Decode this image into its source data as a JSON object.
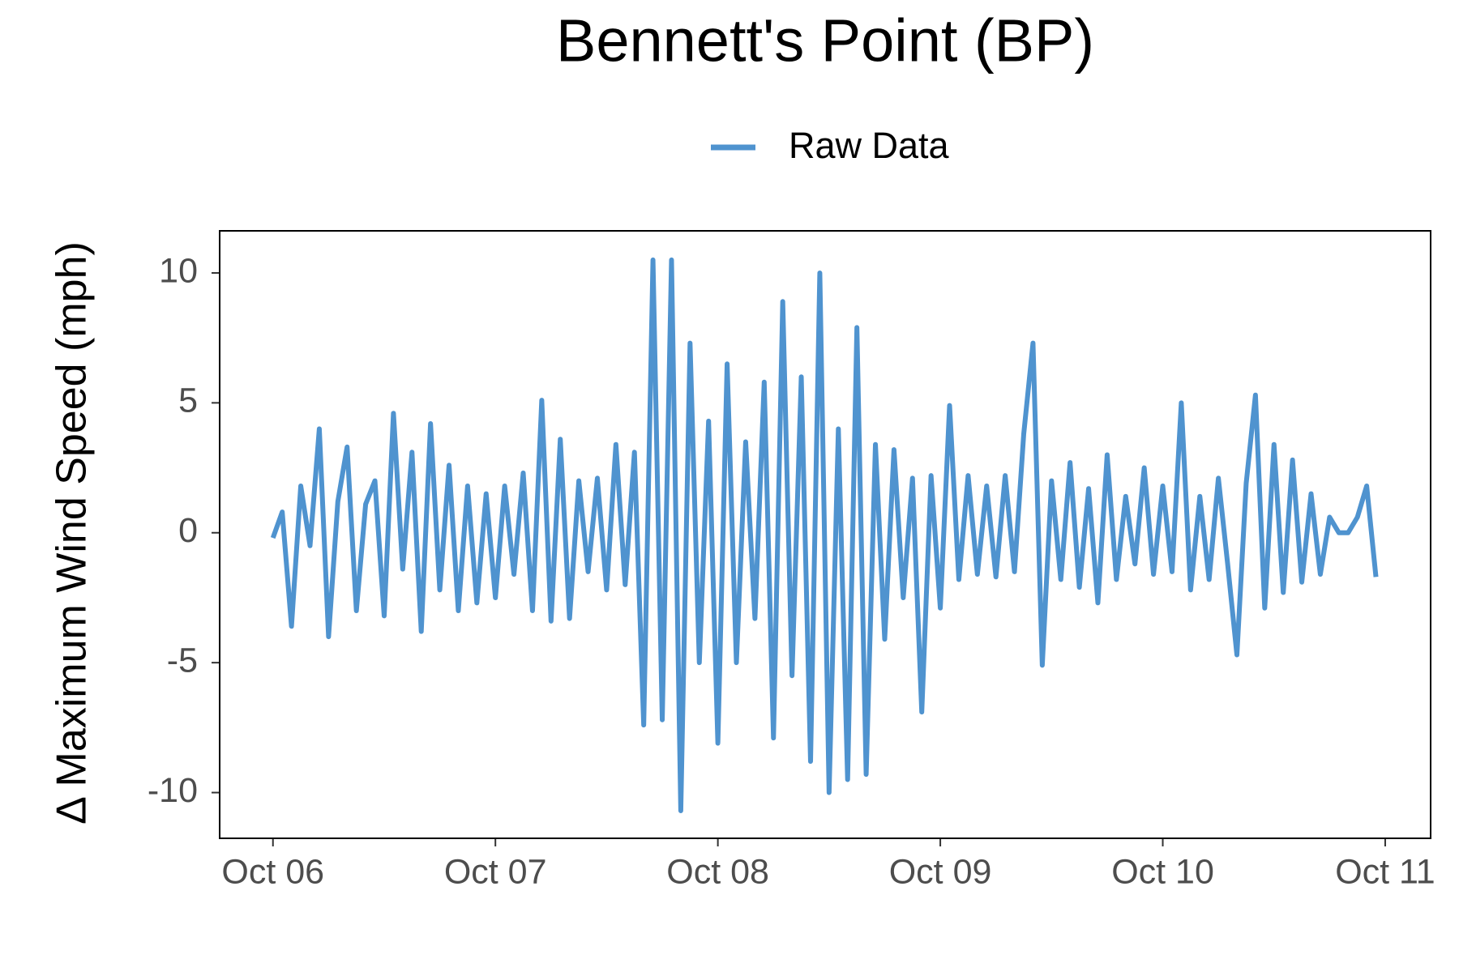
{
  "chart_data": {
    "type": "line",
    "title": "Bennett's Point (BP)",
    "y_label": "Δ Maximum Wind Speed (mph)",
    "legend_position": "top",
    "x": [
      0,
      1,
      2,
      3,
      4,
      5,
      6,
      7,
      8,
      9,
      10,
      11,
      12,
      13,
      14,
      15,
      16,
      17,
      18,
      19,
      20,
      21,
      22,
      23,
      24,
      25,
      26,
      27,
      28,
      29,
      30,
      31,
      32,
      33,
      34,
      35,
      36,
      37,
      38,
      39,
      40,
      41,
      42,
      43,
      44,
      45,
      46,
      47,
      48,
      49,
      50,
      51,
      52,
      53,
      54,
      55,
      56,
      57,
      58,
      59,
      60,
      61,
      62,
      63,
      64,
      65,
      66,
      67,
      68,
      69,
      70,
      71,
      72,
      73,
      74,
      75,
      76,
      77,
      78,
      79,
      80,
      81,
      82,
      83,
      84,
      85,
      86,
      87,
      88,
      89,
      90,
      91,
      92,
      93,
      94,
      95,
      96,
      97,
      98,
      99,
      100,
      101,
      102,
      103,
      104,
      105,
      106,
      107,
      108,
      109,
      110,
      111,
      112,
      113,
      114,
      115,
      116,
      117,
      118,
      119
    ],
    "series": [
      {
        "name": "Raw Data",
        "color": "#4f93cf",
        "values": [
          -0.2,
          0.8,
          -3.6,
          1.8,
          -0.5,
          4.0,
          -4.0,
          1.2,
          3.3,
          -3.0,
          1.1,
          2.0,
          -3.2,
          4.6,
          -1.4,
          3.1,
          -3.8,
          4.2,
          -2.2,
          2.6,
          -3.0,
          1.8,
          -2.7,
          1.5,
          -2.5,
          1.8,
          -1.6,
          2.3,
          -3.0,
          5.1,
          -3.4,
          3.6,
          -3.3,
          2.0,
          -1.5,
          2.1,
          -2.2,
          3.4,
          -2.0,
          3.1,
          -7.4,
          10.5,
          -7.2,
          10.5,
          -10.7,
          7.3,
          -5.0,
          4.3,
          -8.1,
          6.5,
          -5.0,
          3.5,
          -3.3,
          5.8,
          -7.9,
          8.9,
          -5.5,
          6.0,
          -8.8,
          10.0,
          -10.0,
          4.0,
          -9.5,
          7.9,
          -9.3,
          3.4,
          -4.1,
          3.2,
          -2.5,
          2.1,
          -6.9,
          2.2,
          -2.9,
          4.9,
          -1.8,
          2.2,
          -1.6,
          1.8,
          -1.7,
          2.2,
          -1.5,
          3.8,
          7.3,
          -5.1,
          2.0,
          -1.8,
          2.7,
          -2.1,
          1.7,
          -2.7,
          3.0,
          -1.8,
          1.4,
          -1.2,
          2.5,
          -1.6,
          1.8,
          -1.5,
          5.0,
          -2.2,
          1.4,
          -1.8,
          2.1,
          -1.2,
          -4.7,
          1.9,
          5.3,
          -2.9,
          3.4,
          -2.3,
          2.8,
          -1.9,
          1.5,
          -1.6,
          0.6,
          0,
          0,
          0.6,
          1.8,
          -1.7
        ]
      }
    ],
    "xlim": [
      -5.75,
      124.9
    ],
    "xticks": [
      {
        "value": 0,
        "label": "Oct 06"
      },
      {
        "value": 24,
        "label": "Oct 07"
      },
      {
        "value": 48,
        "label": "Oct 08"
      },
      {
        "value": 72,
        "label": "Oct 09"
      },
      {
        "value": 96,
        "label": "Oct 10"
      },
      {
        "value": 120,
        "label": "Oct 11"
      }
    ],
    "ylim": [
      -11.76,
      11.62
    ],
    "yticks": [
      -10,
      -5,
      0,
      5,
      10
    ],
    "grid": false
  }
}
